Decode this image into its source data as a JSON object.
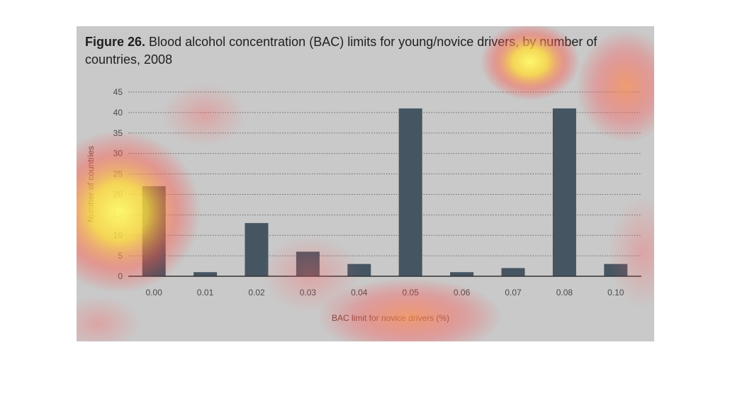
{
  "figure": {
    "label": "Figure 26.",
    "title": "Blood alcohol concentration (BAC) limits for young/novice drivers, by number of countries, 2008"
  },
  "colors": {
    "background": "#c9c9c9",
    "bar": "#455562",
    "grid": "#6b6b6b",
    "axis": "#333333",
    "axis_text": "#4a4a4a",
    "axis_title": "#6a4a3a"
  },
  "chart_data": {
    "type": "bar",
    "categories": [
      "0.00",
      "0.01",
      "0.02",
      "0.03",
      "0.04",
      "0.05",
      "0.06",
      "0.07",
      "0.08",
      "0.10"
    ],
    "values": [
      22,
      1,
      13,
      6,
      3,
      41,
      1,
      2,
      41,
      3
    ],
    "xlabel": "BAC limit for novice drivers (%)",
    "ylabel": "Number of countries",
    "ylim": [
      0,
      45
    ],
    "yticks": [
      0,
      5,
      10,
      15,
      20,
      25,
      30,
      35,
      40,
      45
    ],
    "grid": "horizontal-dotted",
    "legend": "none"
  }
}
